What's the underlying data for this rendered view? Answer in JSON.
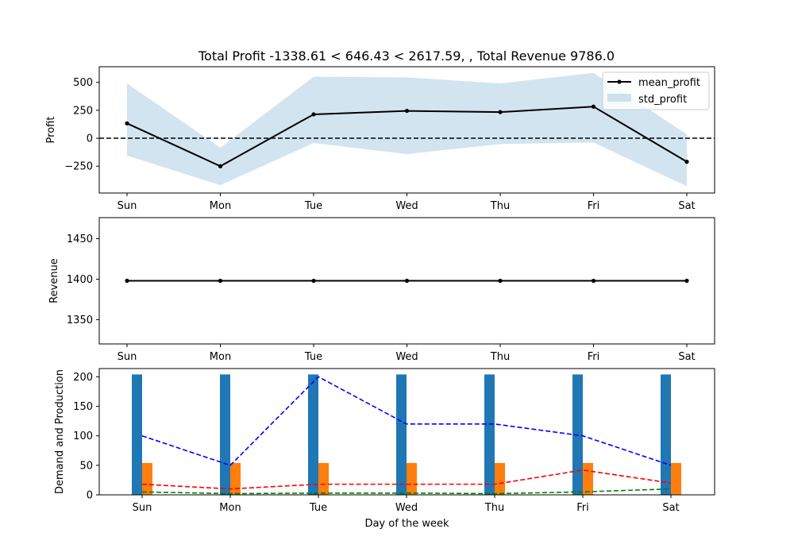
{
  "figure": {
    "title": "Total Profit -1338.61 < 646.43 < 2617.59, , Total Revenue 9786.0"
  },
  "chart_data": [
    {
      "type": "line",
      "ylabel": "Profit",
      "categories": [
        "Sun",
        "Mon",
        "Tue",
        "Wed",
        "Thu",
        "Fri",
        "Sat"
      ],
      "ylim": [
        -490,
        640
      ],
      "yticks": [
        -250,
        0,
        250,
        500
      ],
      "reference_line": 0,
      "grid": false,
      "legend_position": "top-right",
      "series": [
        {
          "name": "mean_profit",
          "kind": "line",
          "color": "#000000",
          "values": [
            133,
            -250,
            214,
            245,
            234,
            283,
            -210
          ]
        },
        {
          "name": "std_profit",
          "kind": "band",
          "color": "#1f77b4",
          "lower": [
            -155,
            -420,
            -42,
            -142,
            -52,
            -38,
            -430
          ],
          "upper": [
            490,
            -85,
            550,
            545,
            490,
            585,
            35
          ]
        }
      ]
    },
    {
      "type": "line",
      "ylabel": "Revenue",
      "categories": [
        "Sun",
        "Mon",
        "Tue",
        "Wed",
        "Thu",
        "Fri",
        "Sat"
      ],
      "ylim": [
        1320,
        1476
      ],
      "yticks": [
        1350,
        1400,
        1450
      ],
      "grid": false,
      "series": [
        {
          "name": "revenue",
          "kind": "line",
          "color": "#000000",
          "values": [
            1398,
            1398,
            1398,
            1398,
            1398,
            1398,
            1398
          ]
        }
      ]
    },
    {
      "type": "bar",
      "ylabel": "Demand and Production",
      "xlabel": "Day of the week",
      "categories": [
        "Sun",
        "Mon",
        "Tue",
        "Wed",
        "Thu",
        "Fri",
        "Sat"
      ],
      "ylim": [
        0,
        214
      ],
      "yticks": [
        0,
        50,
        100,
        150,
        200
      ],
      "grid": false,
      "bars": [
        {
          "color": "#1f77b4",
          "values": [
            204,
            204,
            204,
            204,
            204,
            204,
            204
          ]
        },
        {
          "color": "#ff7f0e",
          "values": [
            54,
            54,
            54,
            54,
            54,
            54,
            54
          ]
        }
      ],
      "dashed_lines": [
        {
          "color": "#0000ff",
          "values": [
            100,
            50,
            200,
            120,
            120,
            100,
            50
          ]
        },
        {
          "color": "#ff0000",
          "values": [
            18,
            10,
            18,
            18,
            18,
            42,
            20
          ]
        },
        {
          "color": "#008000",
          "values": [
            5,
            2,
            3,
            3,
            2,
            5,
            10
          ]
        }
      ]
    }
  ]
}
